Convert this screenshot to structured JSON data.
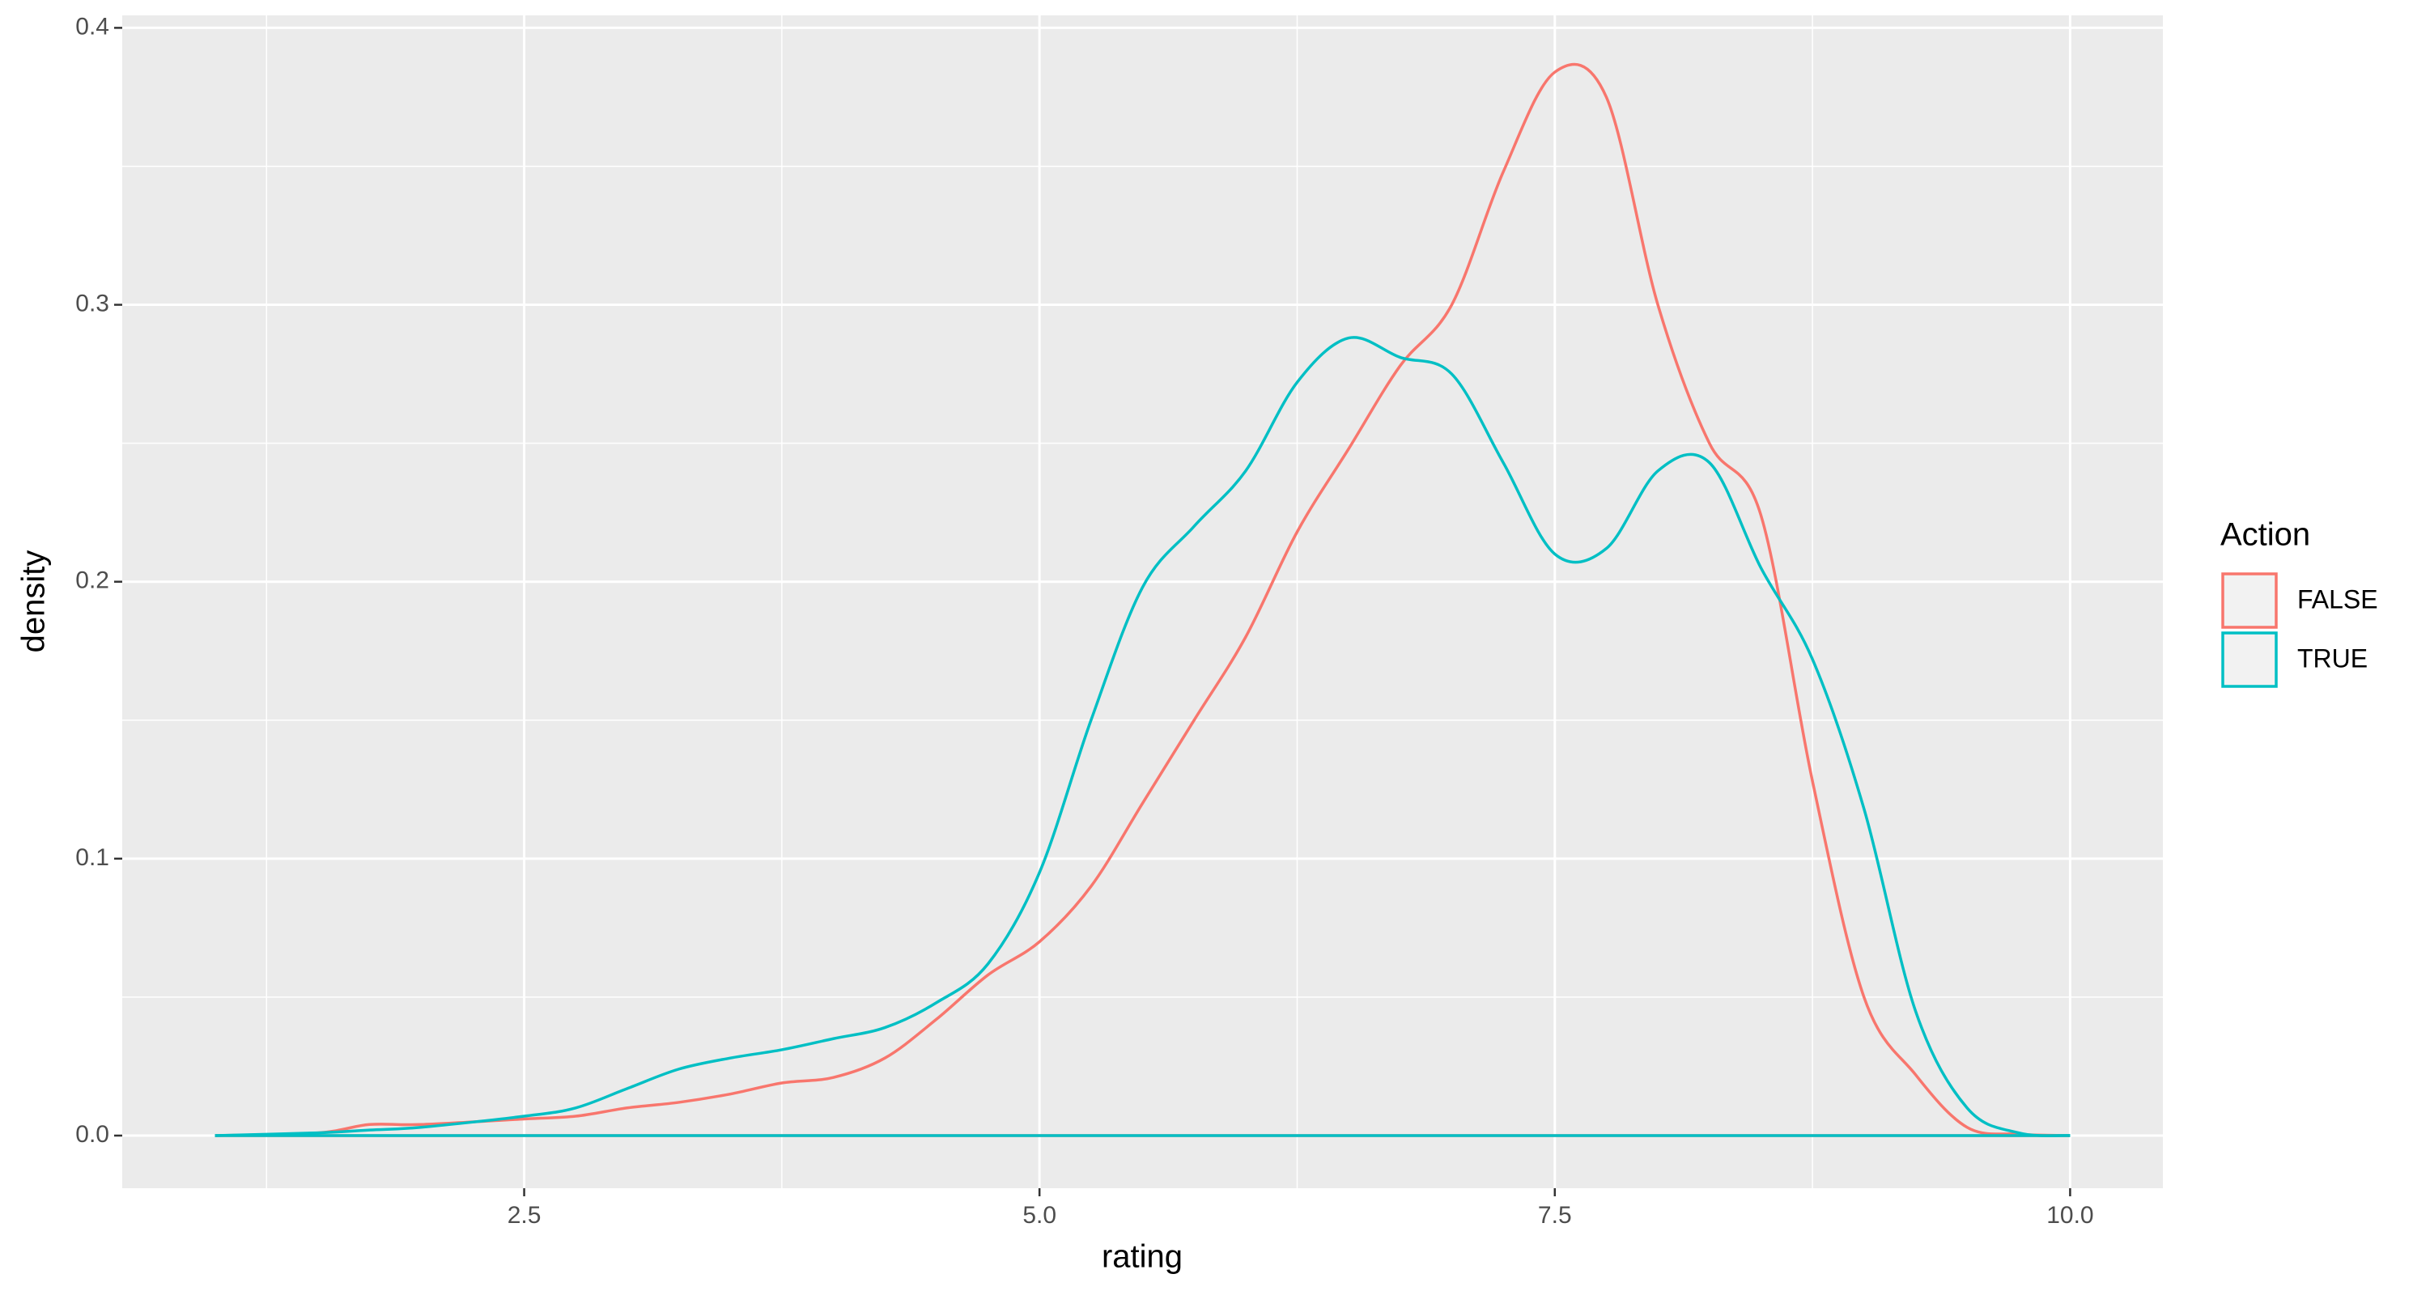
{
  "chart_data": {
    "type": "density",
    "x_label": "rating",
    "y_label": "density",
    "x": [
      1.0,
      1.5,
      1.75,
      2.0,
      2.5,
      2.75,
      3.0,
      3.25,
      3.5,
      3.75,
      4.0,
      4.25,
      4.5,
      4.75,
      5.0,
      5.25,
      5.5,
      5.75,
      6.0,
      6.25,
      6.5,
      6.75,
      7.0,
      7.25,
      7.5,
      7.75,
      8.0,
      8.25,
      8.5,
      8.75,
      9.0,
      9.25,
      9.5,
      9.75,
      10.0
    ],
    "series": [
      {
        "name": "FALSE",
        "color": "#F8766D",
        "values": [
          0,
          0.001,
          0.004,
          0.004,
          0.006,
          0.007,
          0.01,
          0.012,
          0.015,
          0.019,
          0.021,
          0.028,
          0.042,
          0.058,
          0.07,
          0.09,
          0.12,
          0.15,
          0.18,
          0.218,
          0.248,
          0.278,
          0.3,
          0.348,
          0.384,
          0.375,
          0.3,
          0.25,
          0.224,
          0.128,
          0.05,
          0.022,
          0.003,
          0.0005,
          0
        ]
      },
      {
        "name": "TRUE",
        "color": "#00BFC4",
        "values": [
          0,
          0.001,
          0.002,
          0.003,
          0.007,
          0.01,
          0.017,
          0.024,
          0.028,
          0.031,
          0.035,
          0.039,
          0.048,
          0.062,
          0.095,
          0.15,
          0.198,
          0.22,
          0.24,
          0.272,
          0.288,
          0.281,
          0.275,
          0.243,
          0.21,
          0.212,
          0.24,
          0.243,
          0.205,
          0.172,
          0.118,
          0.045,
          0.01,
          0.001,
          0
        ]
      }
    ],
    "legend_title": "Action",
    "legend_position": "right",
    "xlim": [
      0.55,
      10.45
    ],
    "xticks": [
      {
        "value": 2.5,
        "label": "2.5"
      },
      {
        "value": 5,
        "label": "5.0"
      },
      {
        "value": 7.5,
        "label": "7.5"
      },
      {
        "value": 10,
        "label": "10.0"
      }
    ],
    "ylim": [
      -0.019,
      0.4045
    ],
    "yticks": [
      {
        "value": 0,
        "label": "0.0"
      },
      0.1,
      0.2,
      0.3,
      0.4
    ],
    "grid": true,
    "minor_grid": true
  }
}
